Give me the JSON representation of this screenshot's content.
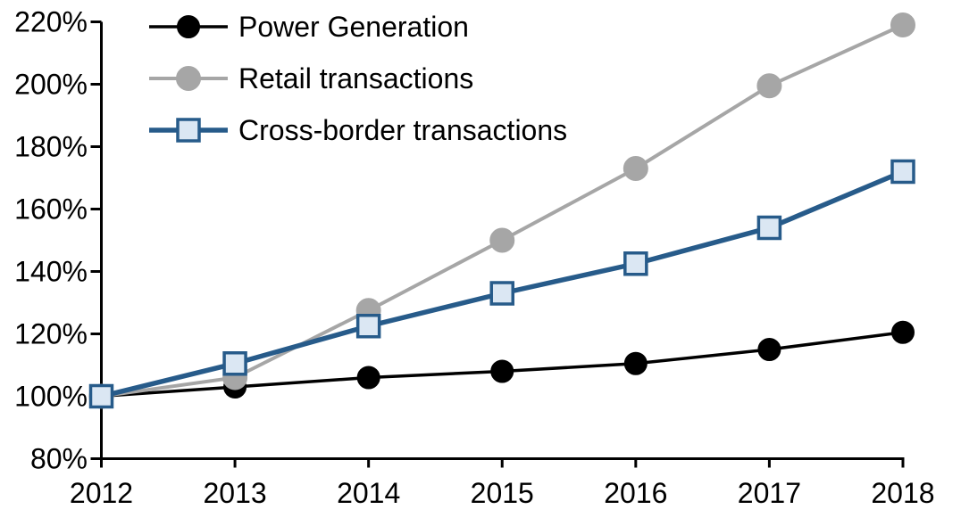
{
  "chart_data": {
    "type": "line",
    "title": "",
    "xlabel": "",
    "ylabel": "",
    "categories": [
      "2012",
      "2013",
      "2014",
      "2015",
      "2016",
      "2017",
      "2018"
    ],
    "series": [
      {
        "name": "Power Generation",
        "marker": "circle",
        "line_color": "#000000",
        "marker_fill": "#000000",
        "marker_stroke": "#000000",
        "line_width": 3.5,
        "marker_radius": 12.5,
        "values": [
          100,
          103,
          106,
          108,
          110.5,
          115,
          120.5
        ]
      },
      {
        "name": "Retail transactions",
        "marker": "circle",
        "line_color": "#A6A6A6",
        "marker_fill": "#A6A6A6",
        "marker_stroke": "#A6A6A6",
        "line_width": 4,
        "marker_radius": 13.5,
        "values": [
          100,
          106,
          127.5,
          150,
          173,
          199.5,
          219
        ]
      },
      {
        "name": "Cross-border transactions",
        "marker": "square",
        "line_color": "#275B8A",
        "marker_fill": "#DBE7F3",
        "marker_stroke": "#275B8A",
        "line_width": 5.5,
        "marker_radius": 12,
        "values": [
          100,
          110.5,
          122.5,
          133,
          142.5,
          154,
          172
        ]
      }
    ],
    "ylim": [
      80,
      220
    ],
    "y_ticks": [
      80,
      100,
      120,
      140,
      160,
      180,
      200,
      220
    ],
    "y_tick_labels": [
      "80%",
      "100%",
      "120%",
      "140%",
      "160%",
      "180%",
      "200%",
      "220%"
    ],
    "grid": false,
    "legend_position": "top-left",
    "axis_color": "#000000",
    "background": "#FFFFFF"
  }
}
